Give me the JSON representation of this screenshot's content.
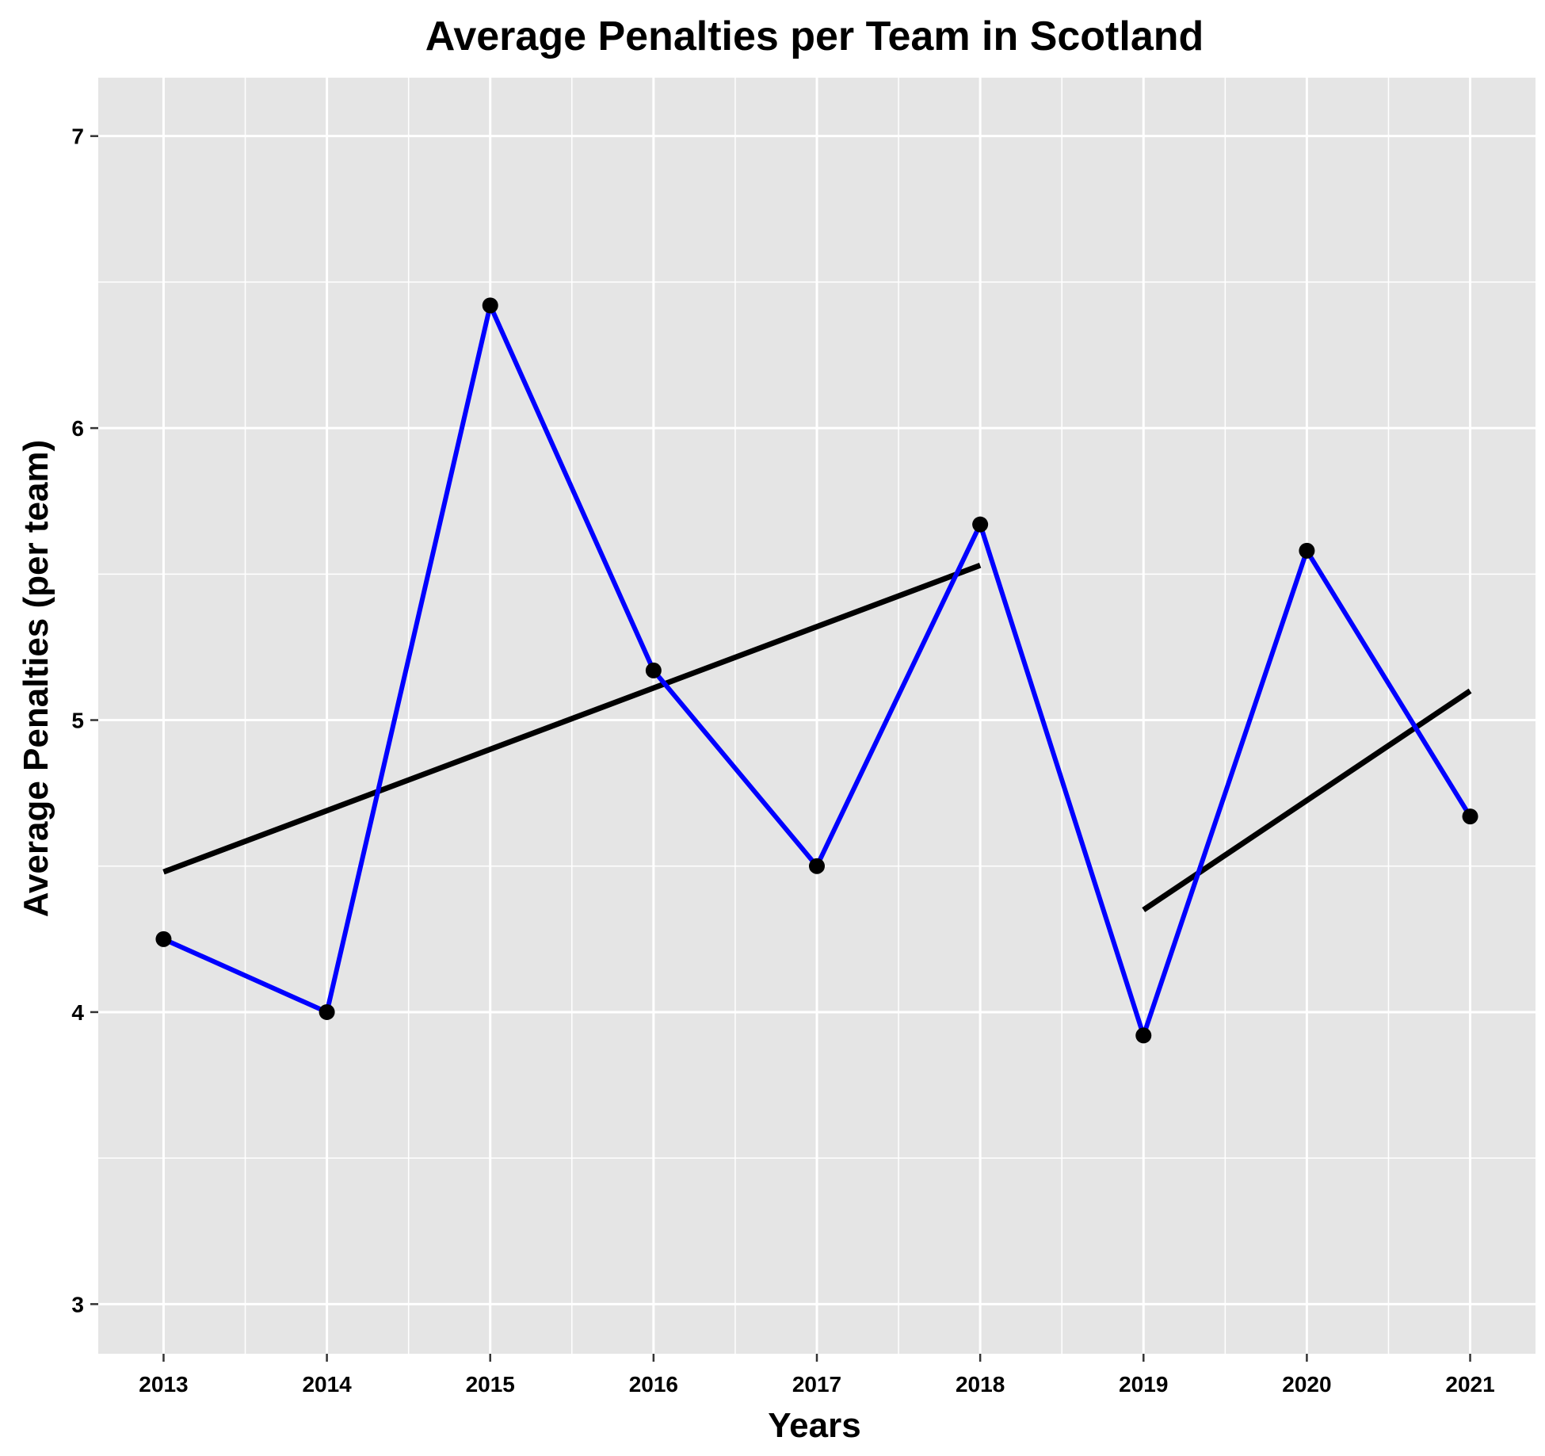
{
  "chart_data": {
    "type": "line",
    "title": "Average Penalties per Team in Scotland",
    "xlabel": "Years",
    "ylabel": "Average Penalties (per team)",
    "x": [
      2013,
      2014,
      2015,
      2016,
      2017,
      2018,
      2019,
      2020,
      2021
    ],
    "xlim": [
      2012.6,
      2021.4
    ],
    "ylim": [
      2.83,
      7.2
    ],
    "y_ticks": [
      3,
      4,
      5,
      6,
      7
    ],
    "x_ticks": [
      2013,
      2014,
      2015,
      2016,
      2017,
      2018,
      2019,
      2020,
      2021
    ],
    "grid": true,
    "series": [
      {
        "values": [
          4.25,
          4.0,
          6.42,
          5.17,
          4.5,
          5.67,
          3.92,
          5.58,
          4.67
        ],
        "color": "#0000ff",
        "marker_color": "#000000"
      }
    ],
    "trend_lines": [
      {
        "x": [
          2013,
          2018
        ],
        "y": [
          4.48,
          5.53
        ],
        "color": "#000000"
      },
      {
        "x": [
          2019,
          2021
        ],
        "y": [
          4.35,
          5.1
        ],
        "color": "#000000"
      }
    ],
    "panel_background": "#e5e5e5",
    "grid_color": "#ffffff"
  }
}
